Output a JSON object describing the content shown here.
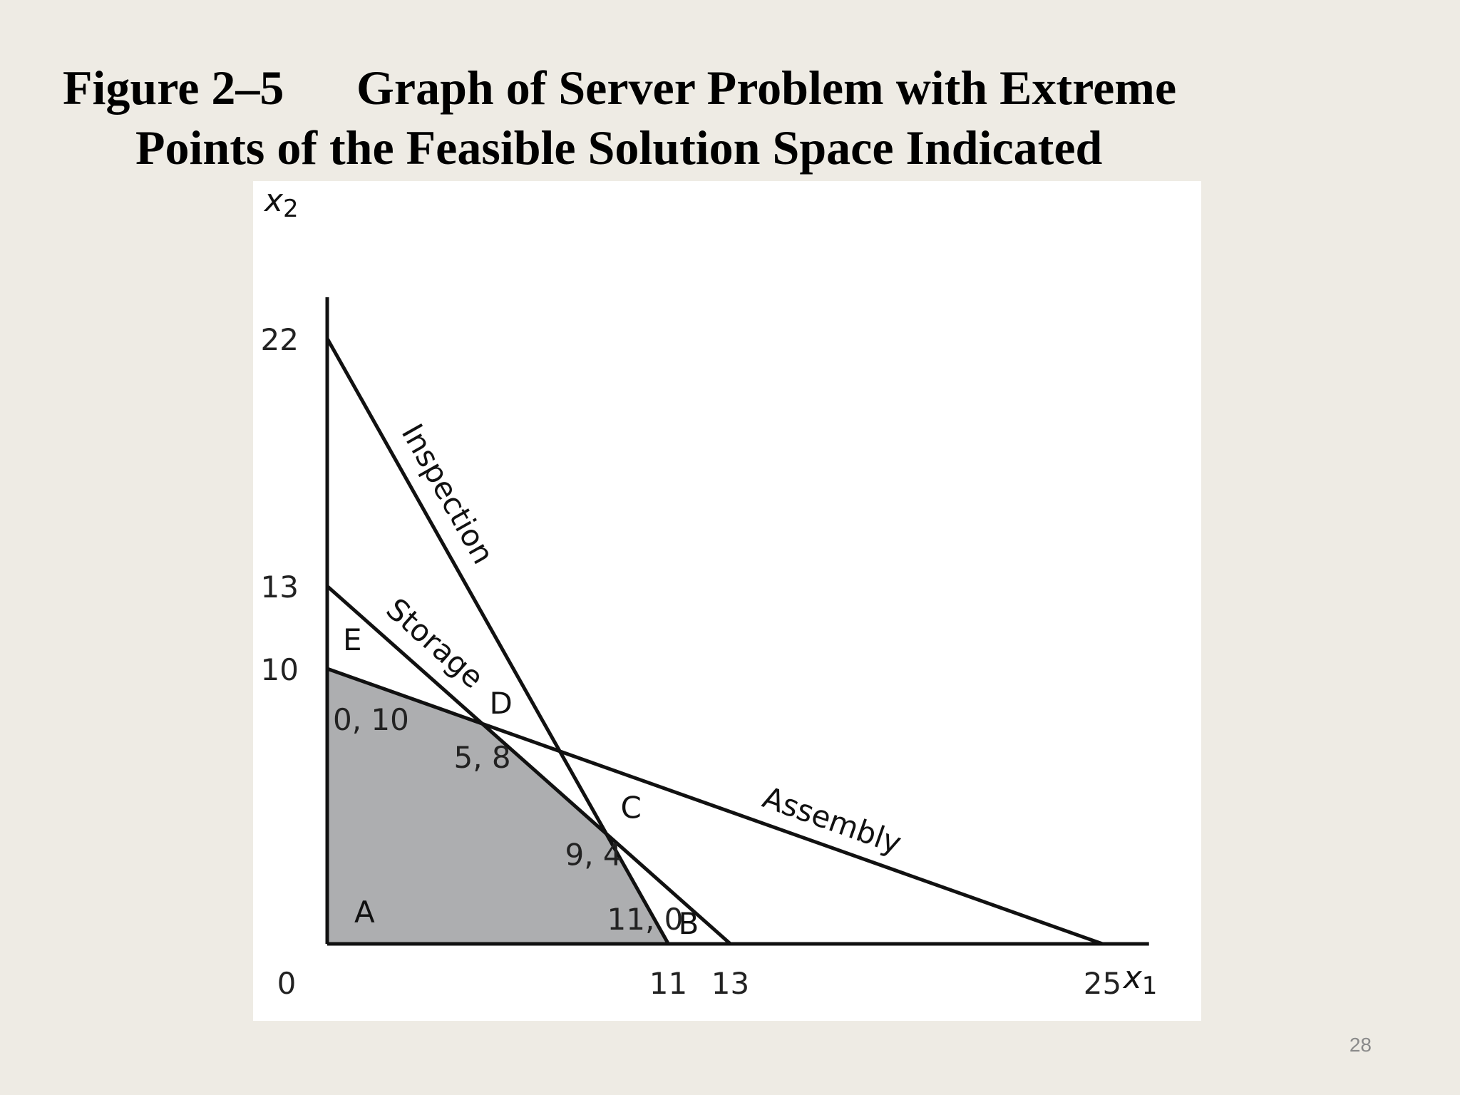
{
  "slide": {
    "title_number": "Figure 2–5",
    "title_line1": "Graph of Server Problem with Extreme",
    "title_line2": "Points of the Feasible Solution Space Indicated",
    "page_number": "28"
  },
  "colors": {
    "background": "#EEEBE4",
    "panel": "#FFFFFF",
    "line": "#111111",
    "feasible_region": "#ADAEB0"
  },
  "chart_data": {
    "type": "line",
    "title": "",
    "xlabel": "x1",
    "ylabel": "x2",
    "xlim": [
      0,
      26.5
    ],
    "ylim": [
      0,
      23.5
    ],
    "x_ticks": [
      {
        "value": 0,
        "label": "0"
      },
      {
        "value": 11,
        "label": "11"
      },
      {
        "value": 13,
        "label": "13"
      },
      {
        "value": 25,
        "label": "25"
      }
    ],
    "y_ticks": [
      {
        "value": 10,
        "label": "10"
      },
      {
        "value": 13,
        "label": "13"
      },
      {
        "value": 22,
        "label": "22"
      }
    ],
    "series": [
      {
        "name": "Inspection",
        "x": [
          0,
          11
        ],
        "y": [
          22,
          0
        ]
      },
      {
        "name": "Storage",
        "x": [
          0,
          13
        ],
        "y": [
          13,
          0
        ]
      },
      {
        "name": "Assembly",
        "x": [
          0,
          25
        ],
        "y": [
          10,
          0
        ]
      }
    ],
    "feasible_region": {
      "x": [
        0,
        0,
        5,
        9,
        11
      ],
      "y": [
        0,
        10,
        8,
        4,
        0
      ]
    },
    "extreme_points": [
      {
        "label": "A",
        "x": 0,
        "y": 0,
        "coords": ""
      },
      {
        "label": "B",
        "x": 11,
        "y": 0,
        "coords": "11, 0"
      },
      {
        "label": "C",
        "x": 9,
        "y": 4,
        "coords": "9, 4"
      },
      {
        "label": "D",
        "x": 5,
        "y": 8,
        "coords": "5, 8"
      },
      {
        "label": "E",
        "x": 0,
        "y": 10,
        "coords": "0, 10"
      }
    ],
    "grid": false
  }
}
